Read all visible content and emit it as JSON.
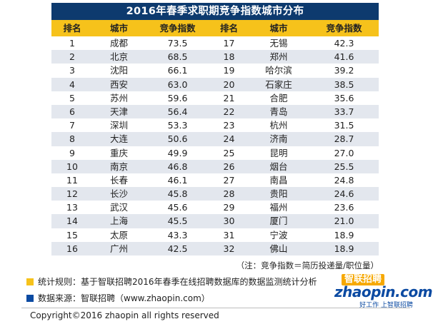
{
  "title": "2016年春季求职期竞争指数城市分布",
  "headers": [
    "排名",
    "城市",
    "竞争指数",
    "排名",
    "城市",
    "竞争指数"
  ],
  "rows": [
    {
      "rank1": "1",
      "city1": "成都",
      "index1": "73.5",
      "rank2": "17",
      "city2": "无锡",
      "index2": "42.3"
    },
    {
      "rank1": "2",
      "city1": "北京",
      "index1": "68.5",
      "rank2": "18",
      "city2": "郑州",
      "index2": "41.6"
    },
    {
      "rank1": "3",
      "city1": "沈阳",
      "index1": "66.1",
      "rank2": "19",
      "city2": "哈尔滨",
      "index2": "39.2"
    },
    {
      "rank1": "4",
      "city1": "西安",
      "index1": "63.0",
      "rank2": "20",
      "city2": "石家庄",
      "index2": "38.5"
    },
    {
      "rank1": "5",
      "city1": "苏州",
      "index1": "59.6",
      "rank2": "21",
      "city2": "合肥",
      "index2": "35.6"
    },
    {
      "rank1": "6",
      "city1": "天津",
      "index1": "56.4",
      "rank2": "22",
      "city2": "青岛",
      "index2": "33.7"
    },
    {
      "rank1": "7",
      "city1": "深圳",
      "index1": "53.3",
      "rank2": "23",
      "city2": "杭州",
      "index2": "31.5"
    },
    {
      "rank1": "8",
      "city1": "大连",
      "index1": "50.6",
      "rank2": "24",
      "city2": "济南",
      "index2": "28.7"
    },
    {
      "rank1": "9",
      "city1": "重庆",
      "index1": "49.9",
      "rank2": "25",
      "city2": "昆明",
      "index2": "27.0"
    },
    {
      "rank1": "10",
      "city1": "南京",
      "index1": "46.8",
      "rank2": "26",
      "city2": "烟台",
      "index2": "25.5"
    },
    {
      "rank1": "11",
      "city1": "长春",
      "index1": "46.1",
      "rank2": "27",
      "city2": "南昌",
      "index2": "24.8"
    },
    {
      "rank1": "12",
      "city1": "长沙",
      "index1": "45.8",
      "rank2": "28",
      "city2": "贵阳",
      "index2": "24.6"
    },
    {
      "rank1": "13",
      "city1": "武汉",
      "index1": "45.6",
      "rank2": "29",
      "city2": "福州",
      "index2": "23.6"
    },
    {
      "rank1": "14",
      "city1": "上海",
      "index1": "45.5",
      "rank2": "30",
      "city2": "厦门",
      "index2": "21.0"
    },
    {
      "rank1": "15",
      "city1": "太原",
      "index1": "43.3",
      "rank2": "31",
      "city2": "宁波",
      "index2": "18.9"
    },
    {
      "rank1": "16",
      "city1": "广州",
      "index1": "42.5",
      "rank2": "32",
      "city2": "佛山",
      "index2": "18.9"
    }
  ],
  "note": "（注：竞争指数＝简历投递量/职位量）",
  "legend": {
    "rule": "统计规则：基于智联招聘2016年春季在线招聘数据库的数据监测统计分析",
    "source": "数据来源：智联招聘（www.zhaopin.com）",
    "rule_color": "#f6c21b",
    "source_color": "#0b4aa2"
  },
  "logo": {
    "cn": "智联招聘",
    "en": "zhaopin.com",
    "slogan": "好工作 上智联招聘"
  },
  "copyright": "Copyright©2016 zhaopin all rights reserved",
  "colors": {
    "title_bg": "#0d3a6e",
    "header_bg": "#f6c21b",
    "alt_row_bg": "#e3e7ee"
  }
}
